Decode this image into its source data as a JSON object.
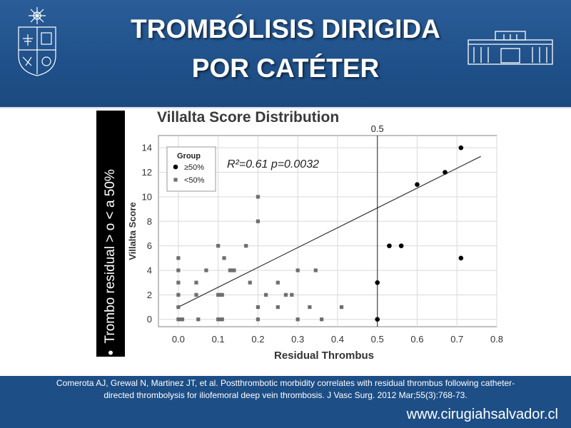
{
  "header": {
    "title_line1": "TROMBÓLISIS DIRIGIDA",
    "title_line2": "POR CATÉTER"
  },
  "bullet_text": "Trombo residual > o < a 50%",
  "citation": {
    "line1": "Comerota AJ, Grewal N, Martinez JT, et al. Postthrombotic morbidity correlates with residual thrombus following catheter-",
    "line2": "directed thrombolysis for iliofemoral deep vein thrombosis. J Vasc Surg. 2012 Mar;55(3):768-73."
  },
  "website": "www.cirugiahsalvador.cl",
  "colors": {
    "header_bg": "#1f5089",
    "panel_bg": "#ffffff",
    "marker_square": "#6e6e6e",
    "marker_circle": "#000000"
  },
  "chart_data": {
    "type": "scatter",
    "title": "Villalta Score Distribution",
    "xlabel": "Residual Thrombus",
    "ylabel": "Villalta Score",
    "xlim": [
      -0.05,
      0.8
    ],
    "ylim": [
      -0.6,
      15
    ],
    "xticks": [
      "0.0",
      "0.1",
      "0.2",
      "0.3",
      "0.4",
      "0.5",
      "0.6",
      "0.7",
      "0.8"
    ],
    "yticks": [
      "0",
      "2",
      "4",
      "6",
      "8",
      "10",
      "12",
      "14"
    ],
    "grid": true,
    "legend": {
      "title": "Group",
      "placement": "top-left",
      "entries": [
        {
          "label": "≥50%",
          "marker": "circle"
        },
        {
          "label": "<50%",
          "marker": "square"
        }
      ]
    },
    "annotations": {
      "stats": "R²=0.61   p=0.0032",
      "vline_label": "0.5",
      "vline_x": 0.5
    },
    "regression_line": {
      "x": [
        0.0,
        0.76
      ],
      "y": [
        1.0,
        13.3
      ]
    },
    "series": [
      {
        "name": "≥50%",
        "marker": "circle",
        "points": [
          [
            0.5,
            0
          ],
          [
            0.5,
            3
          ],
          [
            0.53,
            6
          ],
          [
            0.56,
            6
          ],
          [
            0.6,
            11
          ],
          [
            0.67,
            12
          ],
          [
            0.71,
            14
          ],
          [
            0.71,
            5
          ]
        ]
      },
      {
        "name": "<50%",
        "marker": "square",
        "points": [
          [
            0.0,
            0
          ],
          [
            0.005,
            0
          ],
          [
            0.01,
            0
          ],
          [
            0.0,
            1
          ],
          [
            0.0,
            2
          ],
          [
            0.0,
            3
          ],
          [
            0.0,
            4
          ],
          [
            0.0,
            5
          ],
          [
            0.05,
            0
          ],
          [
            0.045,
            3
          ],
          [
            0.045,
            2
          ],
          [
            0.07,
            4
          ],
          [
            0.1,
            0
          ],
          [
            0.105,
            0
          ],
          [
            0.11,
            0
          ],
          [
            0.1,
            2
          ],
          [
            0.105,
            2
          ],
          [
            0.11,
            2
          ],
          [
            0.1,
            6
          ],
          [
            0.115,
            5
          ],
          [
            0.13,
            4
          ],
          [
            0.135,
            4
          ],
          [
            0.14,
            4
          ],
          [
            0.17,
            6
          ],
          [
            0.18,
            3
          ],
          [
            0.2,
            0
          ],
          [
            0.2,
            1
          ],
          [
            0.2,
            8
          ],
          [
            0.2,
            10
          ],
          [
            0.22,
            2
          ],
          [
            0.25,
            1
          ],
          [
            0.25,
            3
          ],
          [
            0.27,
            2
          ],
          [
            0.285,
            2
          ],
          [
            0.3,
            0
          ],
          [
            0.3,
            4
          ],
          [
            0.33,
            1
          ],
          [
            0.345,
            4
          ],
          [
            0.36,
            0
          ],
          [
            0.41,
            1
          ]
        ]
      }
    ]
  }
}
